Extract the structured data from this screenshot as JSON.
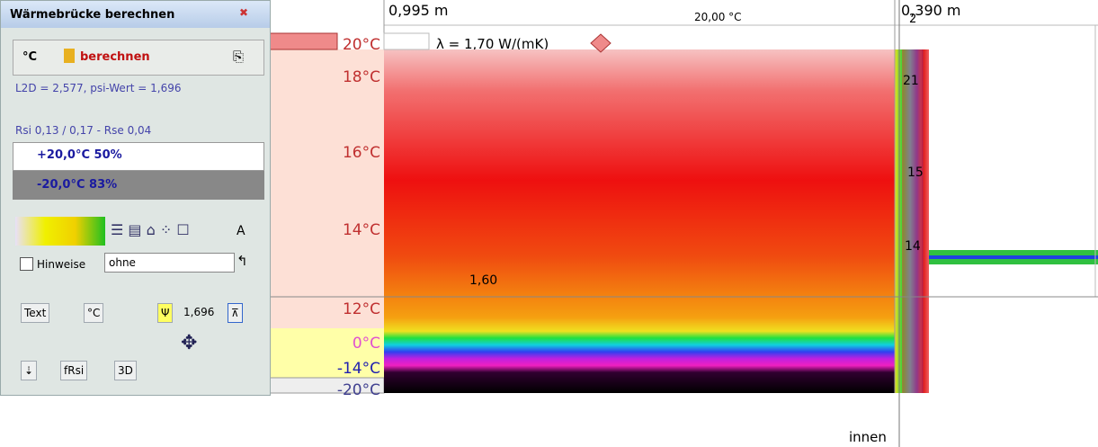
{
  "panel": {
    "title": "Wärmebrücke berechnen",
    "unit": "°C",
    "calc_button": "berechnen",
    "result": "L2D = 2,577, psi-Wert = 1,696",
    "resistances": "Rsi 0,13 / 0,17 - Rse 0,04",
    "inside_climate": "+20,0°C 50%",
    "outside_climate": "-20,0°C 83%",
    "option_a": "A",
    "hints_label": "Hinweise",
    "hints_select": "ohne",
    "text_button": "Text",
    "celsius_button": "°C",
    "psi_value": "1,696",
    "frsi_button": "fRsi",
    "view_3d_button": "3D"
  },
  "drawing": {
    "dim_left": "0,995 m",
    "top_temp": "20,00 °C",
    "dim_right": "0,390 m",
    "dim_right_index": "2",
    "lambda": "λ = 1,70 W/(mK)",
    "scale_labels": [
      "20°C",
      "18°C",
      "16°C",
      "14°C",
      "12°C",
      "0°C",
      "-14°C",
      "-20°C"
    ],
    "marker_value": "1,60",
    "column_labels": [
      "21",
      "15",
      "14"
    ],
    "inside_label": "innen"
  }
}
